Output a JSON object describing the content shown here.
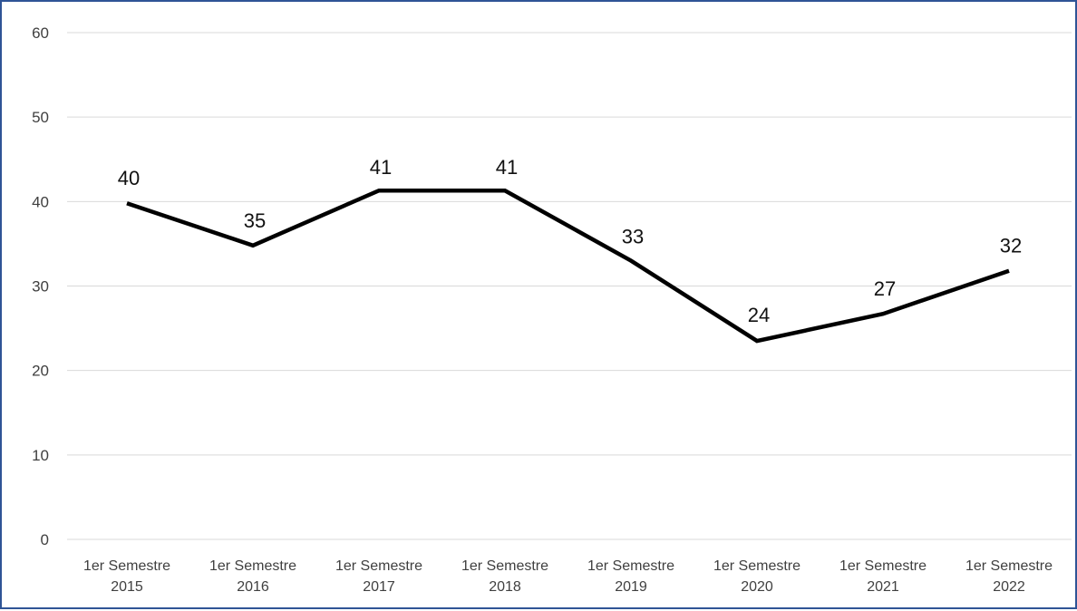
{
  "colors": {
    "frame": "#2f5496",
    "line": "#000000",
    "grid": "#d9d9d9",
    "tick_text": "#404040"
  },
  "chart_data": {
    "type": "line",
    "title": "",
    "xlabel": "",
    "ylabel": "",
    "ylim": [
      0,
      60
    ],
    "yticks": [
      0,
      10,
      20,
      30,
      40,
      50,
      60
    ],
    "grid": true,
    "legend": "none",
    "categories": [
      [
        "1er Semestre",
        "2015"
      ],
      [
        "1er Semestre",
        "2016"
      ],
      [
        "1er Semestre",
        "2017"
      ],
      [
        "1er Semestre",
        "2018"
      ],
      [
        "1er Semestre",
        "2019"
      ],
      [
        "1er Semestre",
        "2020"
      ],
      [
        "1er Semestre",
        "2021"
      ],
      [
        "1er Semestre",
        "2022"
      ]
    ],
    "series": [
      {
        "values": [
          39.8,
          34.8,
          41.3,
          41.3,
          33.0,
          23.5,
          26.7,
          31.8
        ],
        "labels": [
          "40",
          "35",
          "41",
          "41",
          "33",
          "24",
          "27",
          "32"
        ]
      }
    ]
  }
}
